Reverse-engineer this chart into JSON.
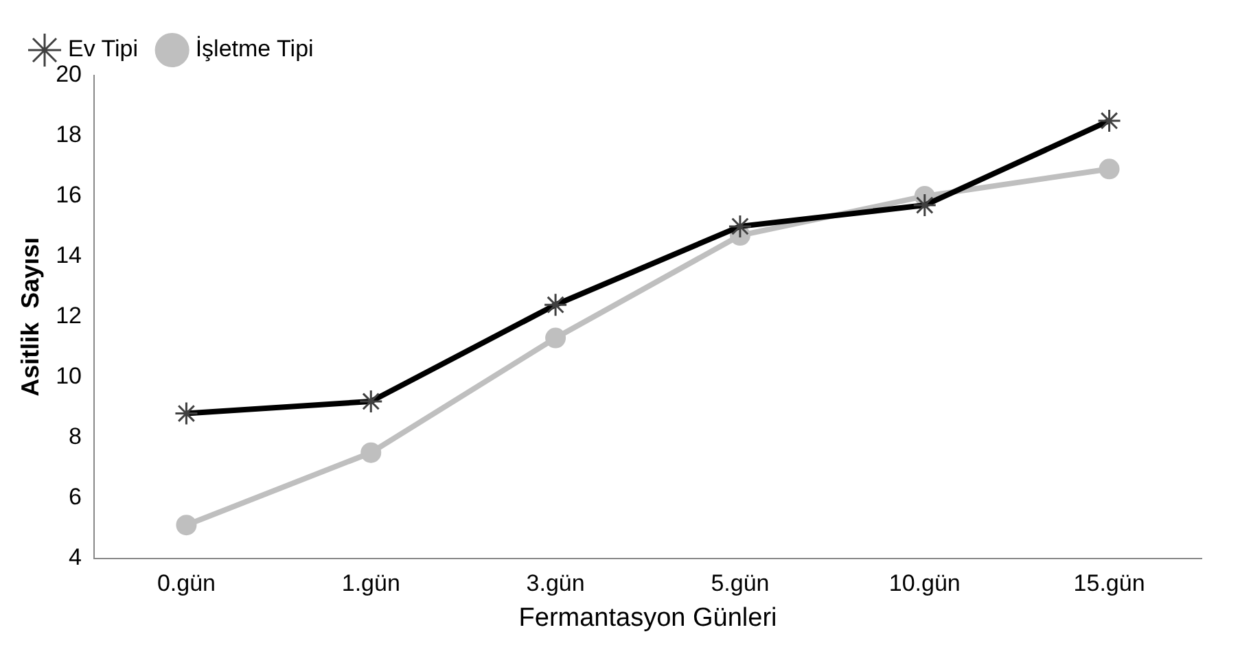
{
  "chart_data": {
    "type": "line",
    "xlabel": "Fermantasyon Günleri",
    "ylabel": "Asitlik  Sayısı",
    "categories": [
      "0.gün",
      "1.gün",
      "3.gün",
      "5.gün",
      "10.gün",
      "15.gün"
    ],
    "series": [
      {
        "name": "Ev Tipi",
        "color": "#000000",
        "marker": "cross",
        "values": [
          8.8,
          9.2,
          12.4,
          15.0,
          15.7,
          18.5
        ]
      },
      {
        "name": "İşletme Tipi",
        "color": "#bfbfbf",
        "marker": "circle",
        "values": [
          5.1,
          7.5,
          11.3,
          14.7,
          16.0,
          16.9
        ]
      }
    ],
    "ylim": [
      4,
      20
    ],
    "yticks": [
      4,
      6,
      8,
      10,
      12,
      14,
      16,
      18,
      20
    ],
    "grid": false,
    "legend": "top left",
    "line_style": "solid"
  }
}
